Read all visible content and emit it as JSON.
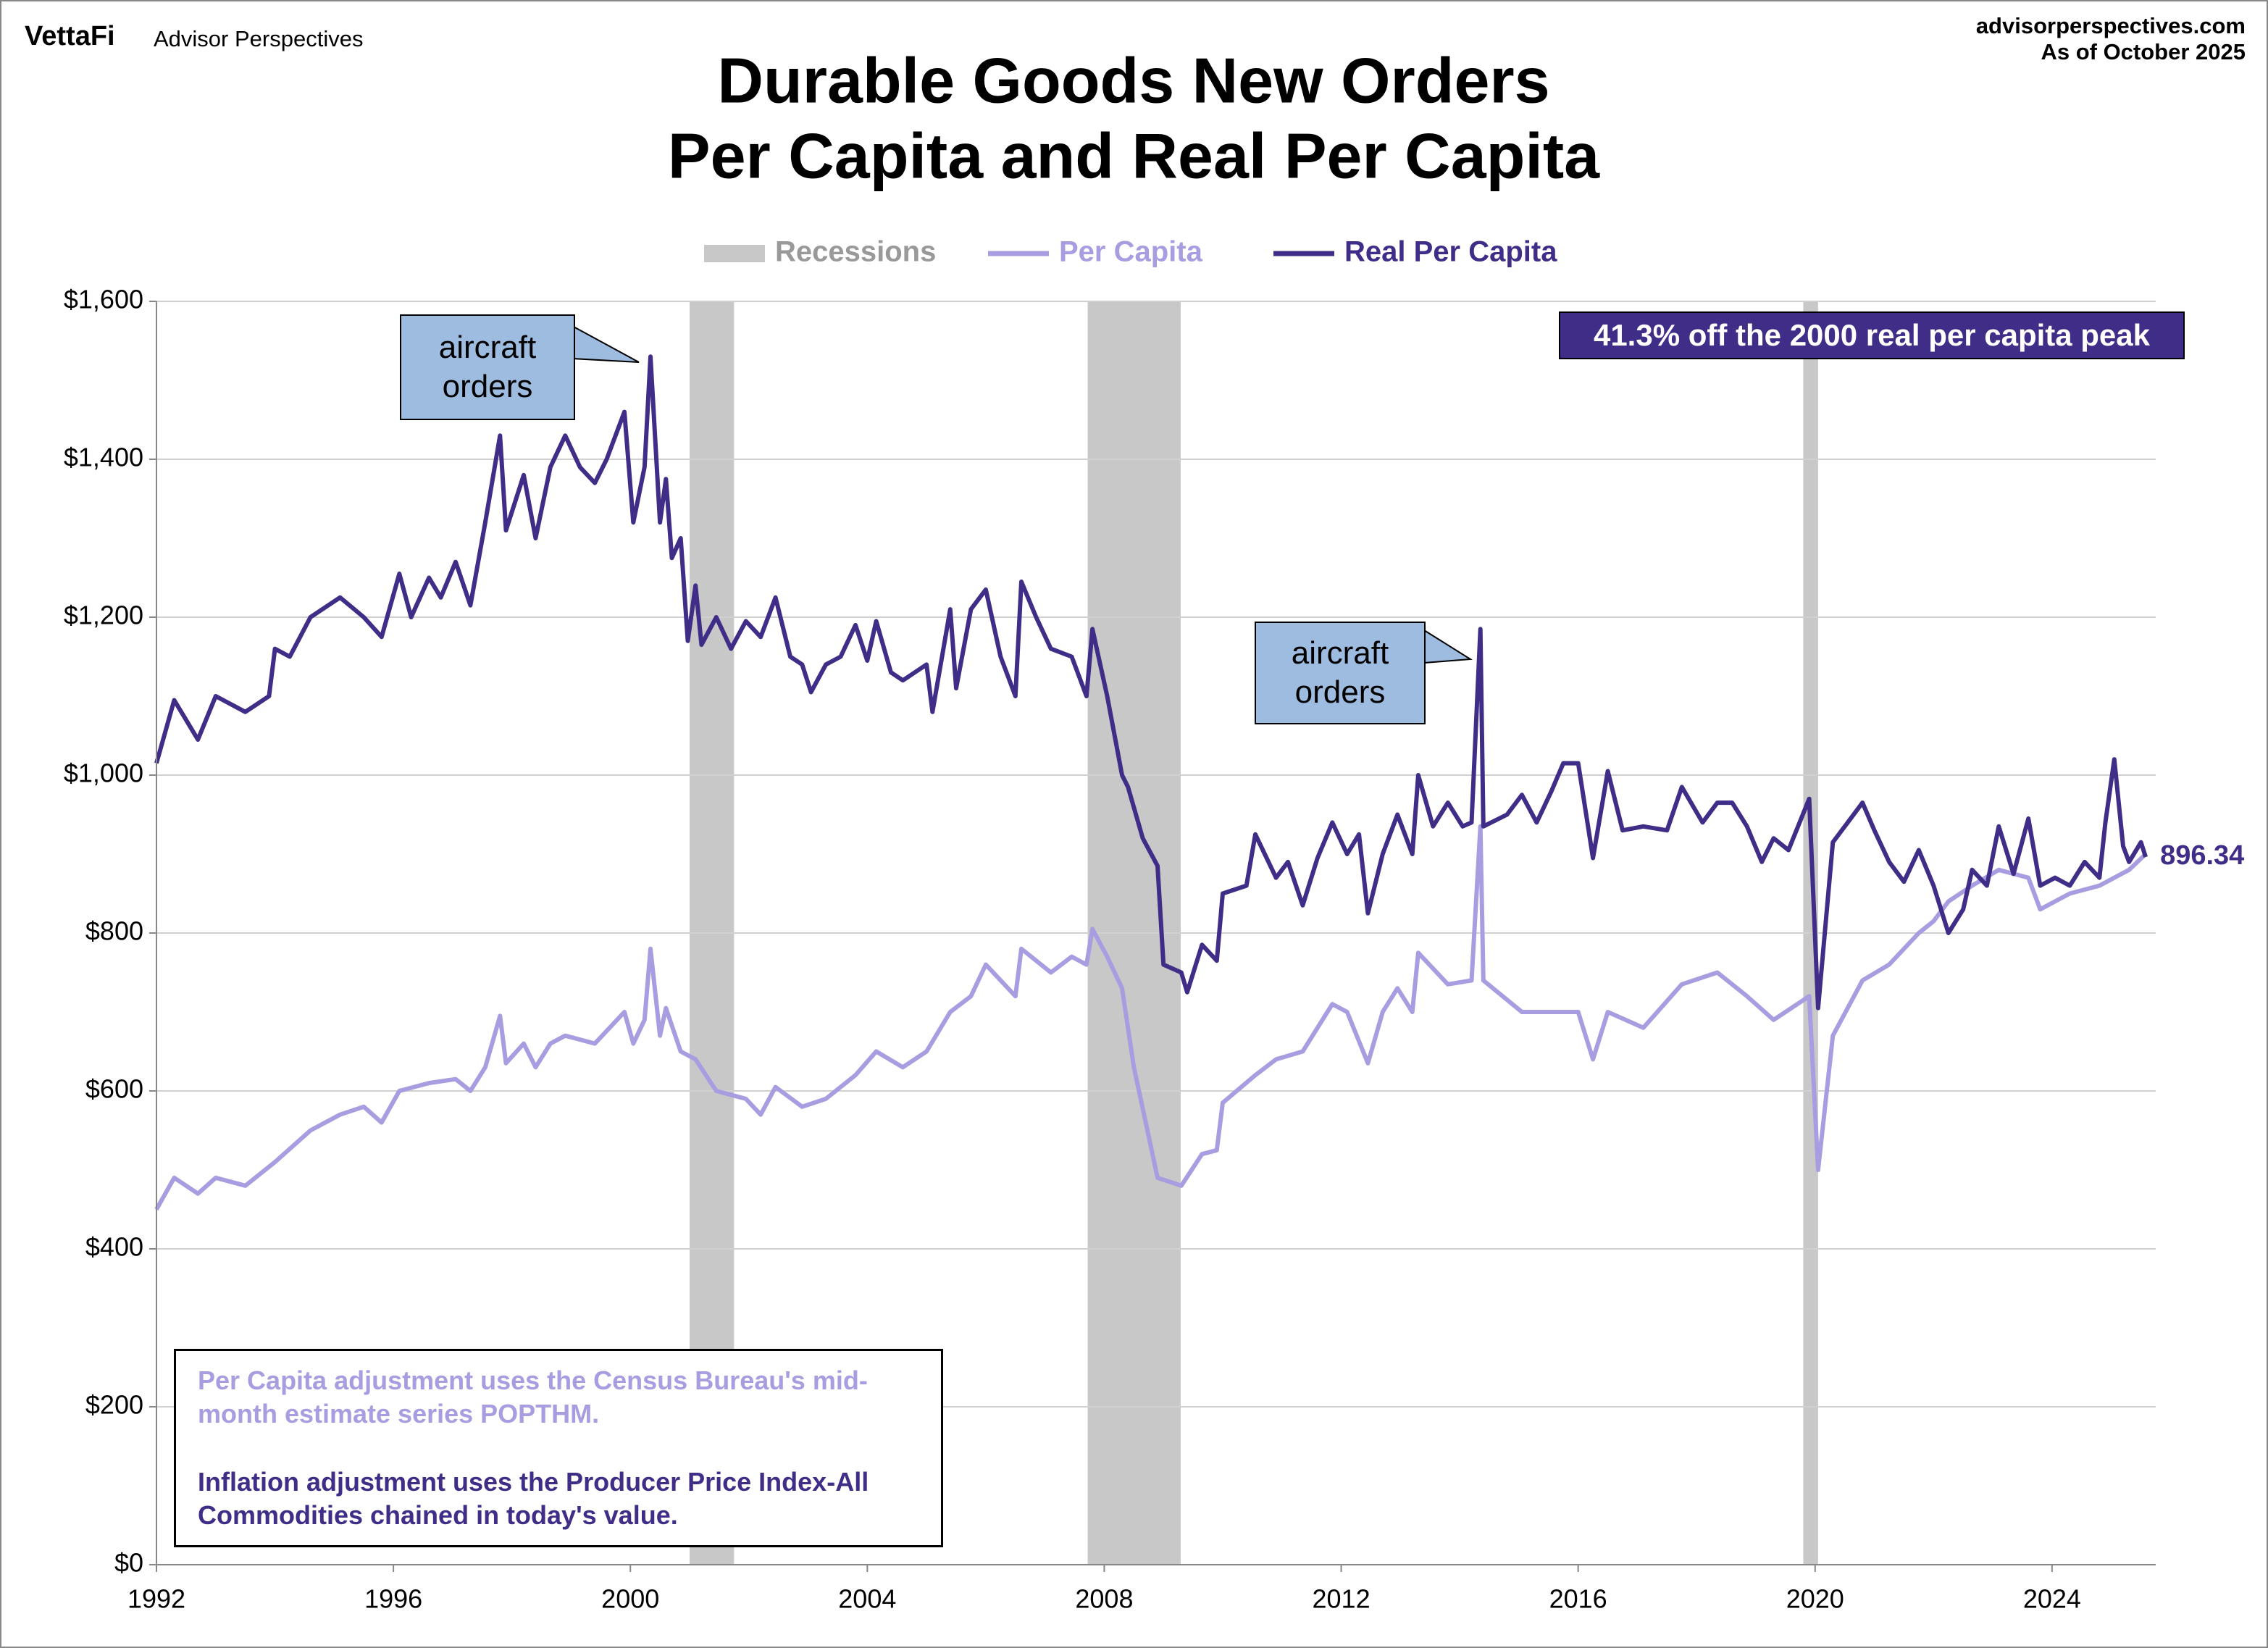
{
  "header": {
    "brand": "VettaFi",
    "publisher": "Advisor Perspectives",
    "site": "advisorperspectives.com",
    "date": "As of October 2025"
  },
  "chart_data": {
    "type": "line",
    "title": [
      "Durable Goods New Orders",
      "Per Capita and Real Per Capita"
    ],
    "xlim": [
      1992,
      2025.75
    ],
    "xticks": [
      1992,
      1996,
      2000,
      2004,
      2008,
      2012,
      2016,
      2020,
      2024
    ],
    "ylim": [
      0,
      1600
    ],
    "yticks": [
      {
        "value": 0,
        "label": "$0"
      },
      {
        "value": 200,
        "label": "$200"
      },
      {
        "value": 400,
        "label": "$400"
      },
      {
        "value": 600,
        "label": "$600"
      },
      {
        "value": 800,
        "label": "$800"
      },
      {
        "value": 1000,
        "label": "$1,000"
      },
      {
        "value": 1200,
        "label": "$1,200"
      },
      {
        "value": 1400,
        "label": "$1,400"
      },
      {
        "value": 1600,
        "label": "$1,600"
      }
    ],
    "grid": true,
    "recessions": {
      "name": "Recessions",
      "color": "#c8c8c8",
      "periods": [
        [
          2001.0,
          2001.75
        ],
        [
          2007.72,
          2009.29
        ],
        [
          2019.8,
          2020.05
        ]
      ]
    },
    "series": [
      {
        "name": "Per Capita",
        "color": "#a79de0",
        "x": [
          1992.0,
          1992.3,
          1992.7,
          1993.0,
          1993.5,
          1994.0,
          1994.6,
          1995.1,
          1995.5,
          1995.8,
          1996.1,
          1996.6,
          1997.05,
          1997.3,
          1997.55,
          1997.8,
          1997.9,
          1998.2,
          1998.4,
          1998.65,
          1998.9,
          1999.4,
          1999.9,
          2000.05,
          2000.24,
          2000.34,
          2000.5,
          2000.6,
          2000.85,
          2001.1,
          2001.45,
          2001.95,
          2002.2,
          2002.45,
          2002.9,
          2003.3,
          2003.8,
          2004.15,
          2004.6,
          2005.0,
          2005.4,
          2005.75,
          2006.0,
          2006.5,
          2006.6,
          2007.1,
          2007.45,
          2007.7,
          2007.8,
          2008.05,
          2008.3,
          2008.5,
          2008.7,
          2008.9,
          2009.3,
          2009.65,
          2009.9,
          2010.0,
          2010.55,
          2010.9,
          2011.35,
          2011.85,
          2012.1,
          2012.45,
          2012.7,
          2012.95,
          2013.2,
          2013.3,
          2013.8,
          2014.2,
          2014.35,
          2014.4,
          2015.05,
          2015.55,
          2016.0,
          2016.25,
          2016.5,
          2017.1,
          2017.75,
          2018.35,
          2018.85,
          2019.3,
          2019.9,
          2020.05,
          2020.3,
          2020.8,
          2021.25,
          2021.75,
          2022.0,
          2022.25,
          2022.65,
          2023.1,
          2023.6,
          2023.8,
          2024.3,
          2024.8,
          2025.05,
          2025.3,
          2025.58
        ],
        "values": [
          450,
          490,
          470,
          490,
          480,
          510,
          550,
          570,
          580,
          560,
          600,
          610,
          615,
          600,
          630,
          695,
          635,
          660,
          630,
          660,
          670,
          660,
          700,
          660,
          690,
          780,
          670,
          705,
          650,
          640,
          600,
          590,
          570,
          605,
          580,
          590,
          620,
          650,
          630,
          650,
          700,
          720,
          760,
          720,
          780,
          750,
          770,
          760,
          805,
          770,
          730,
          630,
          560,
          490,
          480,
          520,
          525,
          585,
          620,
          640,
          650,
          710,
          700,
          635,
          700,
          730,
          700,
          775,
          735,
          740,
          935,
          740,
          700,
          700,
          700,
          640,
          700,
          680,
          735,
          750,
          720,
          690,
          720,
          500,
          670,
          740,
          760,
          800,
          815,
          840,
          860,
          880,
          870,
          830,
          850,
          860,
          870,
          880,
          900
        ]
      },
      {
        "name": "Real Per Capita",
        "color": "#3f2d87",
        "x": [
          1992.0,
          1992.3,
          1992.7,
          1993.0,
          1993.5,
          1993.9,
          1994.0,
          1994.25,
          1994.6,
          1995.1,
          1995.5,
          1995.8,
          1996.1,
          1996.3,
          1996.6,
          1996.8,
          1997.05,
          1997.3,
          1997.55,
          1997.8,
          1997.9,
          1998.2,
          1998.4,
          1998.65,
          1998.9,
          1999.15,
          1999.4,
          1999.6,
          1999.9,
          2000.05,
          2000.24,
          2000.34,
          2000.5,
          2000.6,
          2000.7,
          2000.85,
          2000.97,
          2001.1,
          2001.2,
          2001.45,
          2001.7,
          2001.95,
          2002.2,
          2002.45,
          2002.7,
          2002.9,
          2003.05,
          2003.3,
          2003.55,
          2003.8,
          2004.0,
          2004.15,
          2004.4,
          2004.6,
          2005.0,
          2005.1,
          2005.4,
          2005.5,
          2005.75,
          2006.0,
          2006.25,
          2006.5,
          2006.6,
          2006.85,
          2007.1,
          2007.45,
          2007.7,
          2007.8,
          2008.05,
          2008.3,
          2008.4,
          2008.65,
          2008.9,
          2009.0,
          2009.3,
          2009.4,
          2009.65,
          2009.9,
          2010.0,
          2010.4,
          2010.55,
          2010.9,
          2011.1,
          2011.35,
          2011.6,
          2011.85,
          2012.1,
          2012.3,
          2012.45,
          2012.7,
          2012.95,
          2013.2,
          2013.3,
          2013.55,
          2013.8,
          2014.05,
          2014.2,
          2014.35,
          2014.4,
          2014.8,
          2015.05,
          2015.3,
          2015.55,
          2015.75,
          2016.0,
          2016.25,
          2016.5,
          2016.75,
          2017.1,
          2017.5,
          2017.75,
          2018.1,
          2018.35,
          2018.6,
          2018.85,
          2019.1,
          2019.3,
          2019.55,
          2019.9,
          2020.05,
          2020.3,
          2020.55,
          2020.8,
          2021.0,
          2021.25,
          2021.5,
          2021.75,
          2022.0,
          2022.25,
          2022.5,
          2022.65,
          2022.9,
          2023.1,
          2023.35,
          2023.6,
          2023.8,
          2024.05,
          2024.3,
          2024.55,
          2024.8,
          2024.9,
          2025.05,
          2025.2,
          2025.3,
          2025.5,
          2025.58
        ],
        "values": [
          1015,
          1095,
          1045,
          1100,
          1080,
          1100,
          1160,
          1150,
          1200,
          1225,
          1200,
          1175,
          1255,
          1200,
          1250,
          1225,
          1270,
          1215,
          1320,
          1430,
          1310,
          1380,
          1300,
          1390,
          1430,
          1390,
          1370,
          1400,
          1460,
          1320,
          1390,
          1530,
          1320,
          1375,
          1275,
          1300,
          1170,
          1240,
          1165,
          1200,
          1160,
          1195,
          1175,
          1225,
          1150,
          1140,
          1105,
          1140,
          1150,
          1190,
          1145,
          1195,
          1130,
          1120,
          1140,
          1080,
          1210,
          1110,
          1210,
          1235,
          1150,
          1100,
          1245,
          1200,
          1160,
          1150,
          1100,
          1185,
          1100,
          1000,
          985,
          920,
          885,
          760,
          750,
          725,
          785,
          765,
          850,
          860,
          925,
          870,
          890,
          835,
          895,
          940,
          900,
          925,
          825,
          900,
          950,
          900,
          1000,
          935,
          965,
          935,
          940,
          1185,
          935,
          950,
          975,
          940,
          980,
          1015,
          1015,
          895,
          1005,
          930,
          935,
          930,
          985,
          940,
          965,
          965,
          935,
          890,
          920,
          905,
          970,
          705,
          915,
          940,
          965,
          930,
          890,
          865,
          905,
          860,
          800,
          830,
          880,
          860,
          935,
          875,
          945,
          860,
          870,
          860,
          890,
          870,
          940,
          1020,
          910,
          890,
          915,
          896.34
        ]
      }
    ],
    "annotations": [
      "aircraft orders",
      "aircraft orders"
    ],
    "headline": "41.3% off the 2000 real per capita peak",
    "notes": [
      "Per Capita adjustment uses the Census Bureau's mid-month estimate series POPTHM.",
      "Inflation adjustment uses the Producer Price Index-All Commodities chained in today's value."
    ]
  }
}
